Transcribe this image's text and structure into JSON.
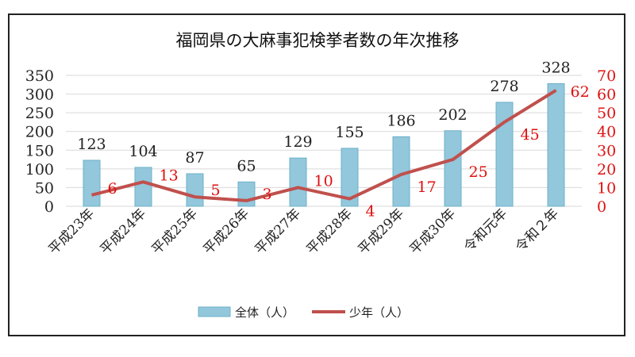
{
  "chart_data": {
    "type": "bar+line",
    "title": "福岡県の大麻事犯検挙者数の年次推移",
    "categories": [
      "平成23年",
      "平成24年",
      "平成25年",
      "平成26年",
      "平成27年",
      "平成28年",
      "平成29年",
      "平成30年",
      "令和元年",
      "令和２年"
    ],
    "series": [
      {
        "name": "全体（人）",
        "type": "bar",
        "axis": "left",
        "values": [
          123,
          104,
          87,
          65,
          129,
          155,
          186,
          202,
          278,
          328
        ]
      },
      {
        "name": "少年（人）",
        "type": "line",
        "axis": "right",
        "values": [
          6,
          13,
          5,
          3,
          10,
          4,
          17,
          25,
          45,
          62
        ]
      }
    ],
    "ylim_left": [
      0,
      350
    ],
    "yticks_left": [
      0,
      50,
      100,
      150,
      200,
      250,
      300,
      350
    ],
    "ylim_right": [
      0,
      70
    ],
    "yticks_right": [
      0,
      10,
      20,
      30,
      40,
      50,
      60,
      70
    ],
    "grid": true,
    "legend": "bottom",
    "colors": {
      "bar": "#92c7dc",
      "bar_edge": "#6fb0c8",
      "line": "#c0504d",
      "right_axis_text": "#e01010",
      "grid": "#d9d9d9"
    }
  }
}
